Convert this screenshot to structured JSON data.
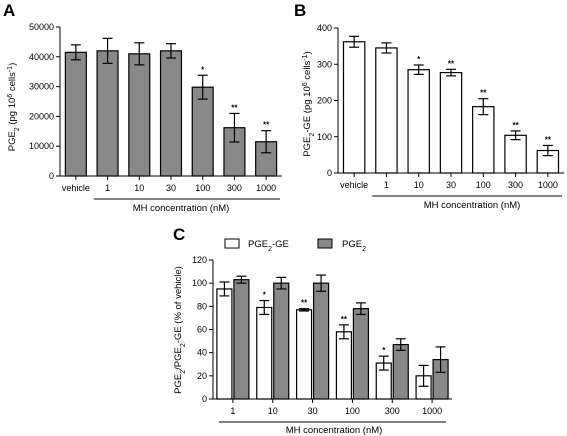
{
  "chart_data": [
    {
      "panel": "A",
      "type": "bar",
      "categories": [
        "vehicle",
        "1",
        "10",
        "30",
        "100",
        "300",
        "1000"
      ],
      "values": [
        41500,
        42000,
        41000,
        42000,
        29800,
        16200,
        11500
      ],
      "errors": [
        2500,
        4200,
        3700,
        2400,
        4000,
        4800,
        3700
      ],
      "significance": [
        "",
        "",
        "",
        "",
        "*",
        "**",
        "**"
      ],
      "ylabel_main": "PGE",
      "ylabel_sub": "2",
      "ylabel_unit": " (pg 10",
      "ylabel_exp": "6",
      "ylabel_tail": " cells",
      "ylabel_exp2": "-1",
      "ylabel_close": ")",
      "xlabel": "MH concentration (nM)",
      "ylim": [
        0,
        50000
      ],
      "yticks": [
        "0",
        "10000",
        "20000",
        "30000",
        "40000",
        "50000"
      ],
      "ytick_values": [
        0,
        10000,
        20000,
        30000,
        40000,
        50000
      ],
      "bar_color": "#888888"
    },
    {
      "panel": "B",
      "type": "bar",
      "categories": [
        "vehicle",
        "1",
        "10",
        "30",
        "100",
        "300",
        "1000"
      ],
      "values": [
        362,
        345,
        285,
        277,
        183,
        104,
        62
      ],
      "errors": [
        15,
        14,
        13,
        9,
        22,
        12,
        14
      ],
      "significance": [
        "",
        "",
        "*",
        "**",
        "**",
        "**",
        "**"
      ],
      "ylabel_main": "PGE",
      "ylabel_sub": "2",
      "ylabel_unit": "-GE (pg 10",
      "ylabel_exp": "6",
      "ylabel_tail": " cells",
      "ylabel_exp2": "-1",
      "ylabel_close": ")",
      "xlabel": "MH concentration (nM)",
      "ylim": [
        0,
        400
      ],
      "yticks": [
        "0",
        "100",
        "200",
        "300",
        "400"
      ],
      "ytick_values": [
        0,
        100,
        200,
        300,
        400
      ],
      "bar_color": "#ffffff"
    },
    {
      "panel": "C",
      "type": "bar",
      "categories": [
        "1",
        "10",
        "30",
        "100",
        "300",
        "1000"
      ],
      "series": [
        {
          "label_main": "PGE",
          "label_sub": "2",
          "label_tail": "-GE",
          "values": [
            95,
            79,
            77,
            58,
            31,
            20
          ],
          "errors": [
            6,
            6,
            1,
            6,
            6,
            9
          ],
          "significance": [
            "",
            "*",
            "**",
            "**",
            "*",
            ""
          ],
          "color": "#ffffff"
        },
        {
          "label_main": "PGE",
          "label_sub": "2",
          "label_tail": "",
          "values": [
            103,
            100,
            100,
            78,
            47,
            34
          ],
          "errors": [
            3,
            5,
            7,
            5,
            5,
            11
          ],
          "significance": [
            "",
            "",
            "",
            "",
            "",
            ""
          ],
          "color": "#888888"
        }
      ],
      "ylabel_main": "PGE",
      "ylabel_sub": "2",
      "ylabel_unit": "/PGE",
      "ylabel_sub2": "2",
      "ylabel_tail": "-GE (% of vehicle)",
      "xlabel": "MH concentration (nM)",
      "ylim": [
        0,
        120
      ],
      "yticks": [
        "0",
        "20",
        "40",
        "60",
        "80",
        "100",
        "120"
      ],
      "ytick_values": [
        0,
        20,
        40,
        60,
        80,
        100,
        120
      ],
      "legend_position": "top"
    }
  ]
}
